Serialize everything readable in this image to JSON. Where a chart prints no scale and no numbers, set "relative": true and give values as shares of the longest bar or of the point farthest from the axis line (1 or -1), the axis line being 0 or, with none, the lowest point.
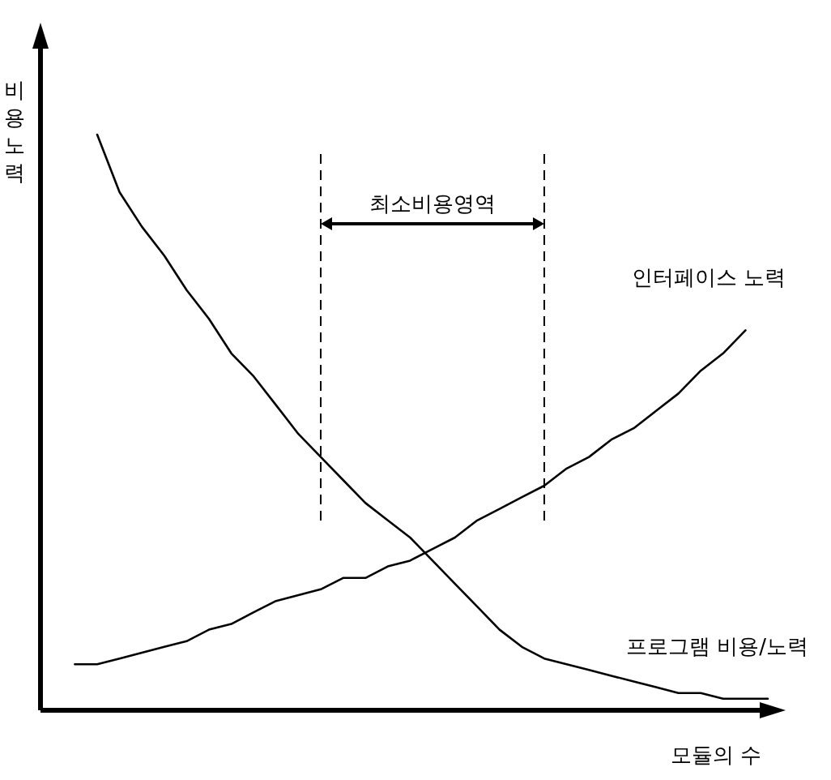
{
  "chart_data": {
    "type": "line",
    "relative": true,
    "legend": false,
    "line_style": "solid",
    "xlabel": "모듈의 수",
    "ylabel": "비용노력",
    "categories": [
      null,
      null,
      null,
      null,
      null,
      null,
      null,
      null,
      null,
      null,
      null,
      null,
      null,
      null,
      null,
      null,
      null,
      null,
      null,
      null,
      null,
      null,
      null,
      null,
      null,
      null,
      null,
      null,
      null,
      null,
      null,
      null
    ],
    "series": [
      {
        "name": "프로그램 비용/노력",
        "color": "#000000",
        "values": [
          null,
          1.0,
          0.9,
          0.84,
          0.79,
          0.73,
          0.68,
          0.62,
          0.58,
          0.53,
          0.48,
          0.44,
          0.4,
          0.36,
          0.33,
          0.3,
          0.26,
          0.22,
          0.18,
          0.14,
          0.11,
          0.09,
          0.08,
          0.07,
          0.06,
          0.05,
          0.04,
          0.03,
          0.03,
          0.02,
          0.02,
          0.02
        ]
      },
      {
        "name": "인터페이스 노력",
        "color": "#000000",
        "values": [
          0.08,
          0.08,
          0.09,
          0.1,
          0.11,
          0.12,
          0.14,
          0.15,
          0.17,
          0.19,
          0.2,
          0.21,
          0.23,
          0.23,
          0.25,
          0.26,
          0.28,
          0.3,
          0.33,
          0.35,
          0.37,
          0.39,
          0.42,
          0.44,
          0.47,
          0.49,
          0.52,
          0.55,
          0.59,
          0.62,
          0.66,
          null
        ]
      }
    ],
    "annotations": [
      "최소비용영역"
    ]
  }
}
